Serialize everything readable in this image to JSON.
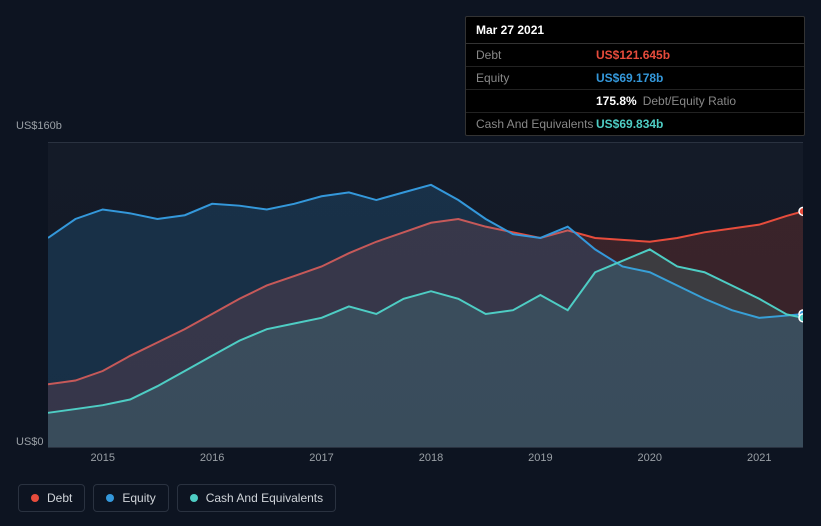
{
  "chart": {
    "type": "area",
    "background_color": "#0d1421",
    "plot_background": "#141b28",
    "grid_color": "#2a3240",
    "axis_label_color": "#9aa0a6",
    "axis_fontsize": 11,
    "xlim": [
      2014.5,
      2021.4
    ],
    "ylim": [
      0,
      160
    ],
    "y_unit_prefix": "US$",
    "y_unit_suffix": "b",
    "yticks": [
      {
        "value": 0,
        "label": "US$0"
      },
      {
        "value": 160,
        "label": "US$160b"
      }
    ],
    "xticks": [
      2015,
      2016,
      2017,
      2018,
      2019,
      2020,
      2021
    ],
    "series": [
      {
        "id": "debt",
        "label": "Debt",
        "stroke": "#e74c3c",
        "fill": "#e74c3c",
        "fill_opacity": 0.18,
        "line_width": 2,
        "data": [
          [
            2014.5,
            33
          ],
          [
            2014.75,
            35
          ],
          [
            2015,
            40
          ],
          [
            2015.25,
            48
          ],
          [
            2015.5,
            55
          ],
          [
            2015.75,
            62
          ],
          [
            2016,
            70
          ],
          [
            2016.25,
            78
          ],
          [
            2016.5,
            85
          ],
          [
            2016.75,
            90
          ],
          [
            2017,
            95
          ],
          [
            2017.25,
            102
          ],
          [
            2017.5,
            108
          ],
          [
            2017.75,
            113
          ],
          [
            2018,
            118
          ],
          [
            2018.25,
            120
          ],
          [
            2018.5,
            116
          ],
          [
            2018.75,
            113
          ],
          [
            2019,
            110
          ],
          [
            2019.25,
            114
          ],
          [
            2019.5,
            110
          ],
          [
            2019.75,
            109
          ],
          [
            2020,
            108
          ],
          [
            2020.25,
            110
          ],
          [
            2020.5,
            113
          ],
          [
            2020.75,
            115
          ],
          [
            2021,
            117
          ],
          [
            2021.25,
            121.6
          ],
          [
            2021.4,
            124
          ]
        ]
      },
      {
        "id": "equity",
        "label": "Equity",
        "stroke": "#3498db",
        "fill": "#3498db",
        "fill_opacity": 0.18,
        "line_width": 2,
        "data": [
          [
            2014.5,
            110
          ],
          [
            2014.75,
            120
          ],
          [
            2015,
            125
          ],
          [
            2015.25,
            123
          ],
          [
            2015.5,
            120
          ],
          [
            2015.75,
            122
          ],
          [
            2016,
            128
          ],
          [
            2016.25,
            127
          ],
          [
            2016.5,
            125
          ],
          [
            2016.75,
            128
          ],
          [
            2017,
            132
          ],
          [
            2017.25,
            134
          ],
          [
            2017.5,
            130
          ],
          [
            2017.75,
            134
          ],
          [
            2018,
            138
          ],
          [
            2018.25,
            130
          ],
          [
            2018.5,
            120
          ],
          [
            2018.75,
            112
          ],
          [
            2019,
            110
          ],
          [
            2019.25,
            116
          ],
          [
            2019.5,
            104
          ],
          [
            2019.75,
            95
          ],
          [
            2020,
            92
          ],
          [
            2020.25,
            85
          ],
          [
            2020.5,
            78
          ],
          [
            2020.75,
            72
          ],
          [
            2021,
            68
          ],
          [
            2021.25,
            69.2
          ],
          [
            2021.4,
            70
          ]
        ]
      },
      {
        "id": "cash",
        "label": "Cash And Equivalents",
        "stroke": "#4ecdc4",
        "fill": "#4ecdc4",
        "fill_opacity": 0.15,
        "line_width": 2,
        "data": [
          [
            2014.5,
            18
          ],
          [
            2014.75,
            20
          ],
          [
            2015,
            22
          ],
          [
            2015.25,
            25
          ],
          [
            2015.5,
            32
          ],
          [
            2015.75,
            40
          ],
          [
            2016,
            48
          ],
          [
            2016.25,
            56
          ],
          [
            2016.5,
            62
          ],
          [
            2016.75,
            65
          ],
          [
            2017,
            68
          ],
          [
            2017.25,
            74
          ],
          [
            2017.5,
            70
          ],
          [
            2017.75,
            78
          ],
          [
            2018,
            82
          ],
          [
            2018.25,
            78
          ],
          [
            2018.5,
            70
          ],
          [
            2018.75,
            72
          ],
          [
            2019,
            80
          ],
          [
            2019.25,
            72
          ],
          [
            2019.5,
            92
          ],
          [
            2019.75,
            98
          ],
          [
            2020,
            104
          ],
          [
            2020.25,
            95
          ],
          [
            2020.5,
            92
          ],
          [
            2020.75,
            85
          ],
          [
            2021,
            78
          ],
          [
            2021.25,
            69.8
          ],
          [
            2021.4,
            68
          ]
        ]
      }
    ]
  },
  "tooltip": {
    "title": "Mar 27 2021",
    "rows": [
      {
        "label": "Debt",
        "value": "US$121.645b",
        "color": "#e74c3c"
      },
      {
        "label": "Equity",
        "value": "US$69.178b",
        "color": "#3498db"
      },
      {
        "label": "",
        "value": "175.8%",
        "color": "#ffffff",
        "extra": "Debt/Equity Ratio"
      },
      {
        "label": "Cash And Equivalents",
        "value": "US$69.834b",
        "color": "#4ecdc4"
      }
    ]
  },
  "legend": {
    "items": [
      {
        "id": "debt",
        "label": "Debt",
        "color": "#e74c3c"
      },
      {
        "id": "equity",
        "label": "Equity",
        "color": "#3498db"
      },
      {
        "id": "cash",
        "label": "Cash And Equivalents",
        "color": "#4ecdc4"
      }
    ]
  }
}
